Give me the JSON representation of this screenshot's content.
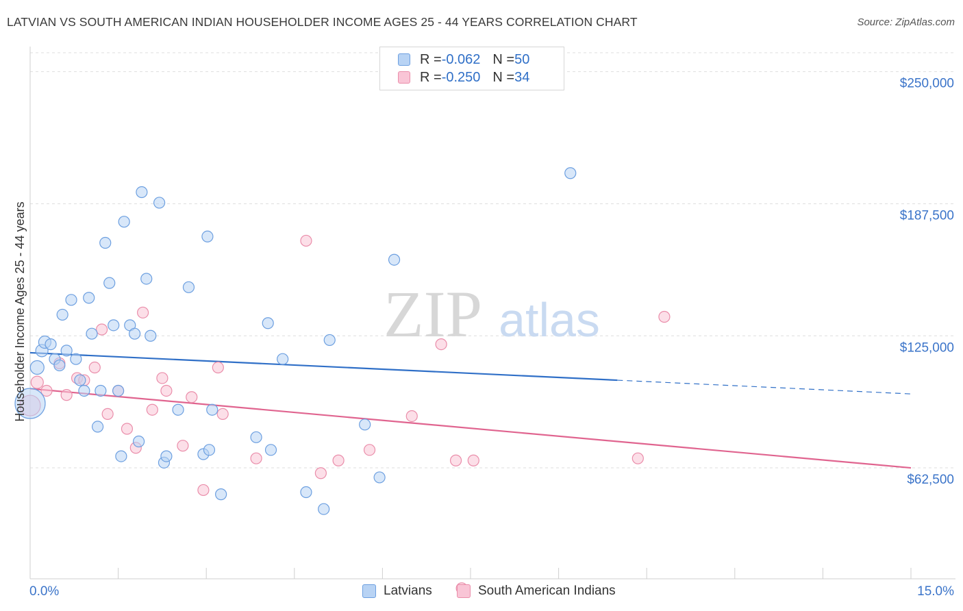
{
  "header": {
    "title": "LATVIAN VS SOUTH AMERICAN INDIAN HOUSEHOLDER INCOME AGES 25 - 44 YEARS CORRELATION CHART",
    "source": "Source: ZipAtlas.com"
  },
  "watermark": {
    "zip": "ZIP",
    "atlas": "atlas"
  },
  "legend_top": {
    "rows": [
      {
        "r_label": "R = ",
        "r_value": "-0.062",
        "n_label": "N = ",
        "n_value": "50"
      },
      {
        "r_label": "R = ",
        "r_value": "-0.250",
        "n_label": "N = ",
        "n_value": "34"
      }
    ]
  },
  "colors": {
    "blue_fill": "#b8d3f4",
    "blue_stroke": "#6c9fe0",
    "blue_line": "#2f6fc7",
    "pink_fill": "#f9c5d6",
    "pink_stroke": "#ea8daa",
    "pink_line": "#e0648f",
    "tick_label": "#3b74c9",
    "grid": "#dedede"
  },
  "chart_data": {
    "type": "scatter",
    "title": "LATVIAN VS SOUTH AMERICAN INDIAN HOUSEHOLDER INCOME AGES 25 - 44 YEARS CORRELATION CHART",
    "xlabel": "",
    "ylabel": "Householder Income Ages 25 - 44 years",
    "xlim": [
      0,
      15
    ],
    "ylim": [
      10000,
      258000
    ],
    "x_tick_labels": [
      "0.0%",
      "15.0%"
    ],
    "y_ticks": [
      62500,
      125000,
      187500,
      250000
    ],
    "y_tick_labels": [
      "$62,500",
      "$125,000",
      "$187,500",
      "$250,000"
    ],
    "grid": true,
    "legend_position": "bottom",
    "series": [
      {
        "name": "Latvians",
        "r": -0.062,
        "n": 50,
        "trend": {
          "x_start": 0.0,
          "y_start": 117000,
          "x_solid_end": 10.0,
          "y_solid_end": 104000,
          "x_end": 15.0,
          "y_end": 97500
        },
        "points": [
          [
            0.0,
            93000,
            22
          ],
          [
            0.12,
            110000,
            10
          ],
          [
            0.2,
            118000,
            9
          ],
          [
            0.25,
            122000,
            9
          ],
          [
            0.35,
            121000,
            8
          ],
          [
            0.42,
            114000,
            8
          ],
          [
            0.5,
            111000,
            8
          ],
          [
            0.55,
            135000,
            8
          ],
          [
            0.62,
            118000,
            8
          ],
          [
            0.7,
            142000,
            8
          ],
          [
            0.78,
            114000,
            8
          ],
          [
            0.85,
            104000,
            8
          ],
          [
            0.92,
            99000,
            8
          ],
          [
            1.0,
            143000,
            8
          ],
          [
            1.05,
            126000,
            8
          ],
          [
            1.15,
            82000,
            8
          ],
          [
            1.2,
            99000,
            8
          ],
          [
            1.28,
            169000,
            8
          ],
          [
            1.35,
            150000,
            8
          ],
          [
            1.42,
            130000,
            8
          ],
          [
            1.5,
            99000,
            8
          ],
          [
            1.55,
            68000,
            8
          ],
          [
            1.6,
            179000,
            8
          ],
          [
            1.7,
            130000,
            8
          ],
          [
            1.78,
            126000,
            8
          ],
          [
            1.85,
            75000,
            8
          ],
          [
            1.9,
            193000,
            8
          ],
          [
            1.98,
            152000,
            8
          ],
          [
            2.05,
            125000,
            8
          ],
          [
            2.2,
            188000,
            8
          ],
          [
            2.28,
            65000,
            8
          ],
          [
            2.32,
            68000,
            8
          ],
          [
            2.52,
            90000,
            8
          ],
          [
            2.7,
            148000,
            8
          ],
          [
            2.95,
            69000,
            8
          ],
          [
            3.02,
            172000,
            8
          ],
          [
            3.05,
            71000,
            8
          ],
          [
            3.1,
            90000,
            8
          ],
          [
            3.25,
            50000,
            8
          ],
          [
            3.85,
            77000,
            8
          ],
          [
            4.05,
            131000,
            8
          ],
          [
            4.1,
            71000,
            8
          ],
          [
            4.3,
            114000,
            8
          ],
          [
            4.7,
            51000,
            8
          ],
          [
            5.0,
            43000,
            8
          ],
          [
            5.1,
            123000,
            8
          ],
          [
            5.7,
            83000,
            8
          ],
          [
            5.95,
            58000,
            8
          ],
          [
            6.2,
            161000,
            8
          ],
          [
            9.2,
            202000,
            8
          ]
        ]
      },
      {
        "name": "South American Indians",
        "r": -0.25,
        "n": 34,
        "trend": {
          "x_start": 0.0,
          "y_start": 100000,
          "x_end": 15.0,
          "y_end": 62500
        },
        "points": [
          [
            0.0,
            92000,
            15
          ],
          [
            0.12,
            103000,
            9
          ],
          [
            0.28,
            99000,
            8
          ],
          [
            0.5,
            112000,
            8
          ],
          [
            0.62,
            97000,
            8
          ],
          [
            0.8,
            105000,
            8
          ],
          [
            0.92,
            104000,
            8
          ],
          [
            1.1,
            110000,
            8
          ],
          [
            1.22,
            128000,
            8
          ],
          [
            1.32,
            88000,
            8
          ],
          [
            1.5,
            99000,
            8
          ],
          [
            1.65,
            81000,
            8
          ],
          [
            1.8,
            72000,
            8
          ],
          [
            1.92,
            136000,
            8
          ],
          [
            2.08,
            90000,
            8
          ],
          [
            2.25,
            105000,
            8
          ],
          [
            2.32,
            99000,
            8
          ],
          [
            2.6,
            73000,
            8
          ],
          [
            2.75,
            96000,
            8
          ],
          [
            2.95,
            52000,
            8
          ],
          [
            3.2,
            110000,
            8
          ],
          [
            3.28,
            88000,
            8
          ],
          [
            3.85,
            67000,
            8
          ],
          [
            4.7,
            170000,
            8
          ],
          [
            4.95,
            60000,
            8
          ],
          [
            5.25,
            66000,
            8
          ],
          [
            5.78,
            71000,
            8
          ],
          [
            6.5,
            87000,
            8
          ],
          [
            7.0,
            121000,
            8
          ],
          [
            7.25,
            66000,
            8
          ],
          [
            7.35,
            5500,
            8
          ],
          [
            7.55,
            66000,
            8
          ],
          [
            10.35,
            67000,
            8
          ],
          [
            10.8,
            134000,
            8
          ]
        ]
      }
    ]
  }
}
